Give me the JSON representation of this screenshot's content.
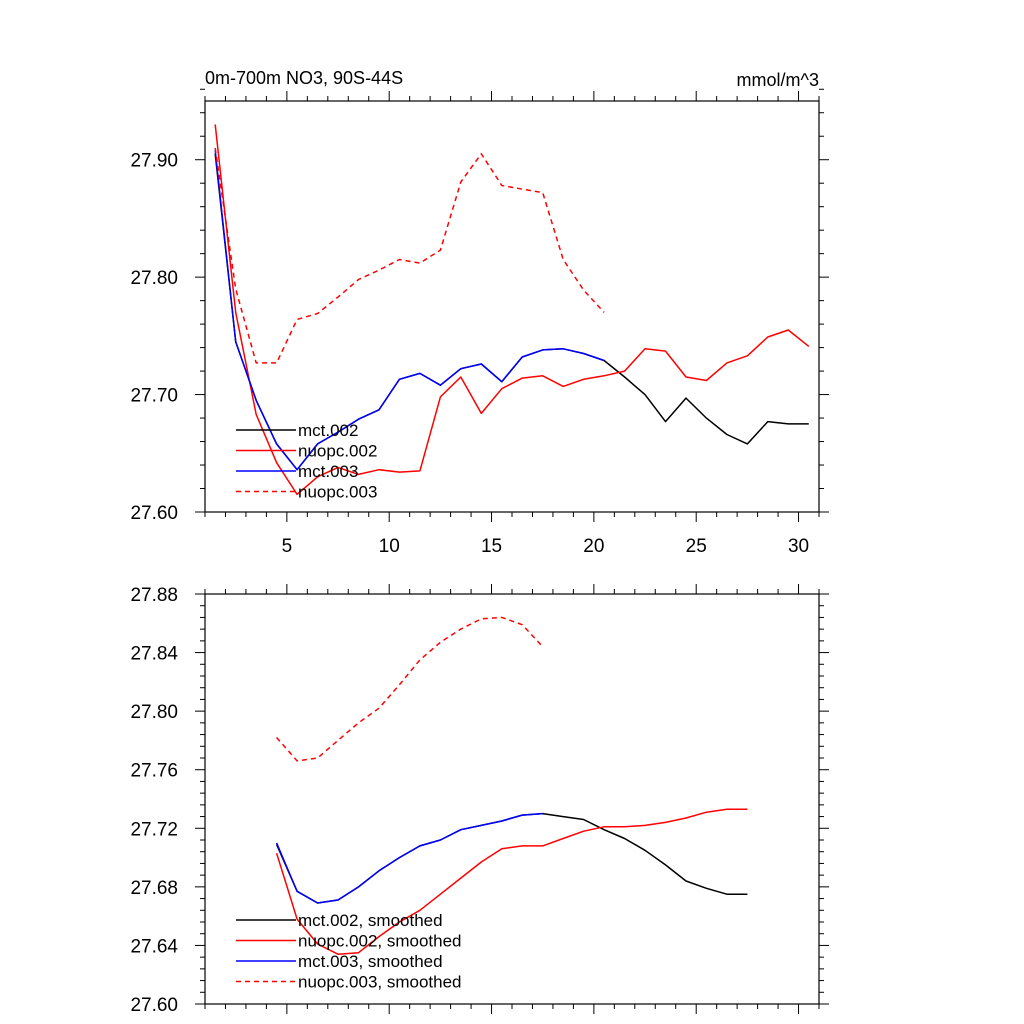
{
  "chart_data": [
    {
      "type": "line",
      "title_left": "0m-700m NO3, 90S-44S",
      "title_right": "mmol/m^3",
      "xlim": [
        1,
        31
      ],
      "ylim": [
        27.6,
        27.95
      ],
      "xticks": [
        5,
        10,
        15,
        20,
        25,
        30
      ],
      "xtick_labels": [
        "5",
        "10",
        "15",
        "20",
        "25",
        "30"
      ],
      "yticks": [
        27.6,
        27.7,
        27.8,
        27.9
      ],
      "ytick_labels": [
        "27.60",
        "27.70",
        "27.80",
        "27.90"
      ],
      "legend_position": "lower-left",
      "series": [
        {
          "name": "mct.002",
          "color": "#000000",
          "dash": "solid",
          "x": [
            1.5,
            2.5,
            3.5,
            4.5,
            5.5,
            6.5,
            7.5,
            8.5,
            9.5,
            10.5,
            11.5,
            12.5,
            13.5,
            14.5,
            15.5,
            16.5,
            17.5,
            18.5,
            19.5,
            20.5,
            21.5,
            22.5,
            23.5,
            24.5,
            25.5,
            26.5,
            27.5,
            28.5,
            29.5,
            30.5
          ],
          "values": [
            27.905,
            27.745,
            27.695,
            27.658,
            27.636,
            27.658,
            27.668,
            27.679,
            27.687,
            27.713,
            27.718,
            27.708,
            27.722,
            27.726,
            27.711,
            27.732,
            27.738,
            27.739,
            27.735,
            27.729,
            27.715,
            27.7,
            27.677,
            27.697,
            27.68,
            27.666,
            27.658,
            27.677,
            27.675,
            27.675
          ]
        },
        {
          "name": "nuopc.002",
          "color": "#ff0000",
          "dash": "solid",
          "x": [
            1.5,
            2.5,
            3.5,
            4.5,
            5.5,
            6.5,
            7.5,
            8.5,
            9.5,
            10.5,
            11.5,
            12.5,
            13.5,
            14.5,
            15.5,
            16.5,
            17.5,
            18.5,
            19.5,
            20.5,
            21.5,
            22.5,
            23.5,
            24.5,
            25.5,
            26.5,
            27.5,
            28.5,
            29.5,
            30.5
          ],
          "values": [
            27.93,
            27.77,
            27.683,
            27.642,
            27.615,
            27.63,
            27.638,
            27.632,
            27.636,
            27.634,
            27.635,
            27.698,
            27.715,
            27.684,
            27.705,
            27.714,
            27.716,
            27.707,
            27.713,
            27.716,
            27.72,
            27.739,
            27.737,
            27.715,
            27.712,
            27.727,
            27.733,
            27.749,
            27.755,
            27.741
          ]
        },
        {
          "name": "mct.003",
          "color": "#0000ff",
          "dash": "solid",
          "x": [
            1.5,
            2.5,
            3.5,
            4.5,
            5.5,
            6.5,
            7.5,
            8.5,
            9.5,
            10.5,
            11.5,
            12.5,
            13.5,
            14.5,
            15.5,
            16.5,
            17.5,
            18.5,
            19.5,
            20.5
          ],
          "values": [
            27.908,
            27.745,
            27.695,
            27.658,
            27.636,
            27.658,
            27.668,
            27.679,
            27.687,
            27.713,
            27.718,
            27.708,
            27.722,
            27.726,
            27.711,
            27.732,
            27.738,
            27.739,
            27.735,
            27.729
          ]
        },
        {
          "name": "nuopc.003",
          "color": "#ff0000",
          "dash": "dashed",
          "x": [
            1.5,
            2.5,
            3.5,
            4.5,
            5.5,
            6.5,
            7.5,
            8.5,
            9.5,
            10.5,
            11.5,
            12.5,
            13.5,
            14.5,
            15.5,
            16.5,
            17.5,
            18.5,
            19.5,
            20.5
          ],
          "values": [
            27.91,
            27.79,
            27.727,
            27.727,
            27.764,
            27.769,
            27.783,
            27.798,
            27.806,
            27.815,
            27.812,
            27.823,
            27.881,
            27.905,
            27.878,
            27.875,
            27.872,
            27.815,
            27.789,
            27.77
          ]
        }
      ]
    },
    {
      "type": "line",
      "xlim": [
        1,
        31
      ],
      "ylim": [
        27.6,
        27.88
      ],
      "xticks": [
        5,
        10,
        15,
        20,
        25,
        30
      ],
      "yticks": [
        27.6,
        27.64,
        27.68,
        27.72,
        27.76,
        27.8,
        27.84,
        27.88
      ],
      "ytick_labels": [
        "27.60",
        "27.64",
        "27.68",
        "27.72",
        "27.76",
        "27.80",
        "27.84",
        "27.88"
      ],
      "legend_position": "lower-left",
      "series": [
        {
          "name": "mct.002, smoothed",
          "color": "#000000",
          "dash": "solid",
          "x": [
            4.5,
            5.5,
            6.5,
            7.5,
            8.5,
            9.5,
            10.5,
            11.5,
            12.5,
            13.5,
            14.5,
            15.5,
            16.5,
            17.5,
            18.5,
            19.5,
            20.5,
            21.5,
            22.5,
            23.5,
            24.5,
            25.5,
            26.5,
            27.5
          ],
          "values": [
            27.709,
            27.677,
            27.669,
            27.671,
            27.68,
            27.691,
            27.7,
            27.708,
            27.712,
            27.719,
            27.722,
            27.725,
            27.729,
            27.73,
            27.728,
            27.726,
            27.719,
            27.713,
            27.705,
            27.695,
            27.684,
            27.679,
            27.675,
            27.675
          ]
        },
        {
          "name": "nuopc.002, smoothed",
          "color": "#ff0000",
          "dash": "solid",
          "x": [
            4.5,
            5.5,
            6.5,
            7.5,
            8.5,
            9.5,
            10.5,
            11.5,
            12.5,
            13.5,
            14.5,
            15.5,
            16.5,
            17.5,
            18.5,
            19.5,
            20.5,
            21.5,
            22.5,
            23.5,
            24.5,
            25.5,
            26.5,
            27.5
          ],
          "values": [
            27.703,
            27.658,
            27.641,
            27.634,
            27.635,
            27.646,
            27.656,
            27.664,
            27.675,
            27.686,
            27.697,
            27.706,
            27.708,
            27.708,
            27.713,
            27.718,
            27.721,
            27.721,
            27.722,
            27.724,
            27.727,
            27.731,
            27.733,
            27.733
          ]
        },
        {
          "name": "mct.003, smoothed",
          "color": "#0000ff",
          "dash": "solid",
          "x": [
            4.5,
            5.5,
            6.5,
            7.5,
            8.5,
            9.5,
            10.5,
            11.5,
            12.5,
            13.5,
            14.5,
            15.5,
            16.5,
            17.5
          ],
          "values": [
            27.71,
            27.677,
            27.669,
            27.671,
            27.68,
            27.691,
            27.7,
            27.708,
            27.712,
            27.719,
            27.722,
            27.725,
            27.729,
            27.73
          ]
        },
        {
          "name": "nuopc.003, smoothed",
          "color": "#ff0000",
          "dash": "dashed",
          "x": [
            4.5,
            5.5,
            6.5,
            7.5,
            8.5,
            9.5,
            10.5,
            11.5,
            12.5,
            13.5,
            14.5,
            15.5,
            16.5,
            17.5
          ],
          "values": [
            27.782,
            27.766,
            27.768,
            27.78,
            27.792,
            27.802,
            27.818,
            27.835,
            27.847,
            27.856,
            27.863,
            27.864,
            27.859,
            27.844
          ]
        }
      ]
    }
  ]
}
